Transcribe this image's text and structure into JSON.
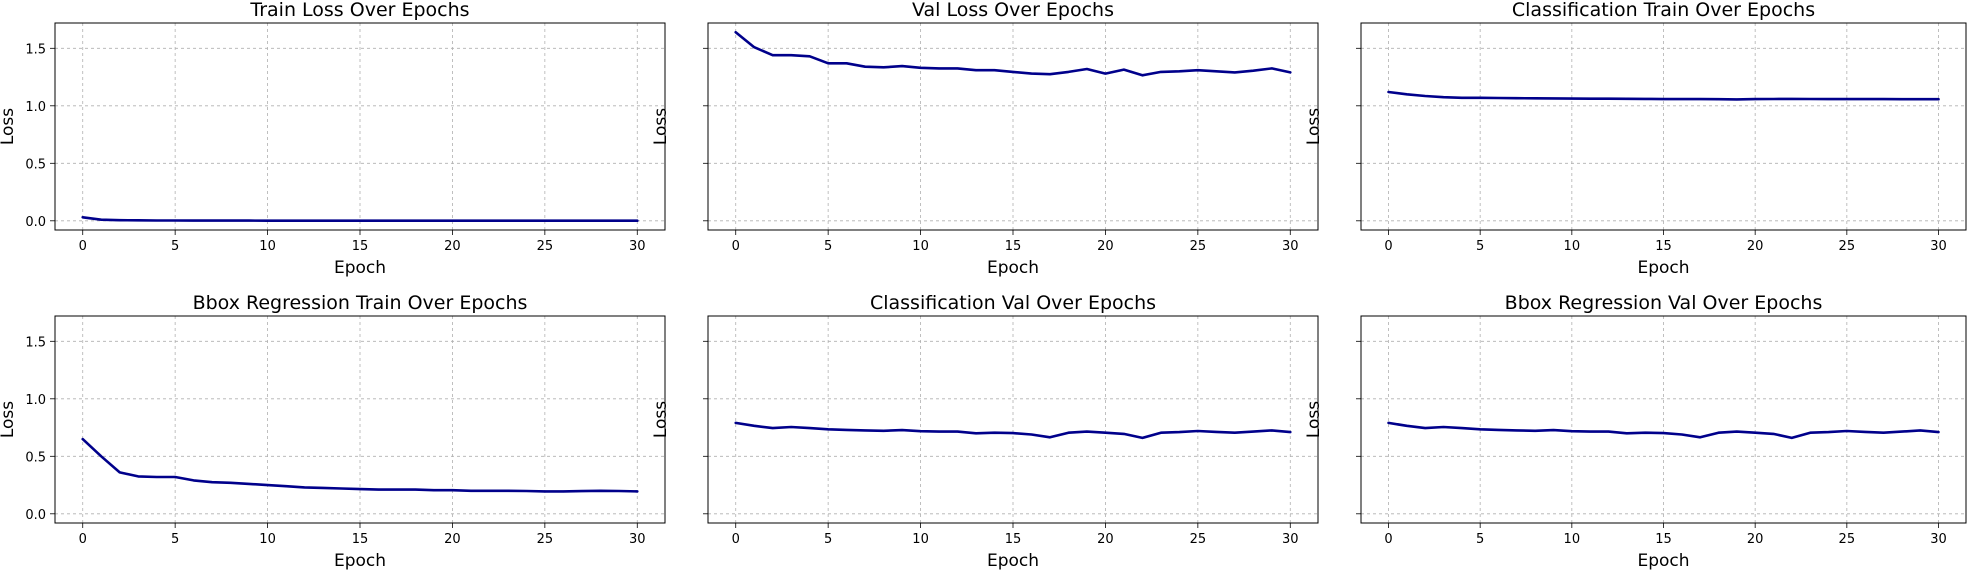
{
  "colors": {
    "line": "#00008b",
    "grid": "#b0b0b0"
  },
  "chart_data": [
    {
      "type": "line",
      "title": "Train Loss Over Epochs",
      "xlabel": "Epoch",
      "ylabel": "Loss",
      "xlim": [
        -1.5,
        31.5
      ],
      "ylim": [
        -0.08,
        1.72
      ],
      "xticks": [
        0,
        5,
        10,
        15,
        20,
        25,
        30
      ],
      "yticks": [
        "0.0",
        "0.5",
        "1.0",
        "1.5"
      ],
      "show_ytick_labels": true,
      "grid": true,
      "series": [
        {
          "x": [
            0,
            1,
            2,
            3,
            4,
            5,
            6,
            7,
            8,
            9,
            10,
            11,
            12,
            13,
            14,
            15,
            16,
            17,
            18,
            19,
            20,
            21,
            22,
            23,
            24,
            25,
            26,
            27,
            28,
            29,
            30
          ],
          "y": [
            0.03,
            0.01,
            0.005,
            0.004,
            0.003,
            0.003,
            0.002,
            0.002,
            0.002,
            0.002,
            0.001,
            0.001,
            0.001,
            0.001,
            0.001,
            0.001,
            0.001,
            0.001,
            0.001,
            0.001,
            0.001,
            0.001,
            0.001,
            0.001,
            0.001,
            0.001,
            0.001,
            0.001,
            0.001,
            0.001,
            0.001
          ]
        }
      ]
    },
    {
      "type": "line",
      "title": "Val Loss Over Epochs",
      "xlabel": "Epoch",
      "ylabel": "Loss",
      "xlim": [
        -1.5,
        31.5
      ],
      "ylim": [
        -0.08,
        1.72
      ],
      "xticks": [
        0,
        5,
        10,
        15,
        20,
        25,
        30
      ],
      "yticks": [
        "0.0",
        "0.5",
        "1.0",
        "1.5"
      ],
      "show_ytick_labels": false,
      "grid": true,
      "series": [
        {
          "x": [
            0,
            1,
            2,
            3,
            4,
            5,
            6,
            7,
            8,
            9,
            10,
            11,
            12,
            13,
            14,
            15,
            16,
            17,
            18,
            19,
            20,
            21,
            22,
            23,
            24,
            25,
            26,
            27,
            28,
            29,
            30
          ],
          "y": [
            1.64,
            1.51,
            1.44,
            1.44,
            1.43,
            1.37,
            1.37,
            1.34,
            1.335,
            1.345,
            1.33,
            1.325,
            1.325,
            1.31,
            1.31,
            1.295,
            1.28,
            1.275,
            1.295,
            1.32,
            1.28,
            1.315,
            1.265,
            1.295,
            1.3,
            1.31,
            1.3,
            1.29,
            1.305,
            1.325,
            1.29
          ]
        }
      ]
    },
    {
      "type": "line",
      "title": "Classification Train Over Epochs",
      "xlabel": "Epoch",
      "ylabel": "Loss",
      "xlim": [
        -1.5,
        31.5
      ],
      "ylim": [
        -0.08,
        1.72
      ],
      "xticks": [
        0,
        5,
        10,
        15,
        20,
        25,
        30
      ],
      "yticks": [
        "0.0",
        "0.5",
        "1.0",
        "1.5"
      ],
      "show_ytick_labels": false,
      "grid": true,
      "series": [
        {
          "x": [
            0,
            1,
            2,
            3,
            4,
            5,
            6,
            7,
            8,
            9,
            10,
            11,
            12,
            13,
            14,
            15,
            16,
            17,
            18,
            19,
            20,
            21,
            22,
            23,
            24,
            25,
            26,
            27,
            28,
            29,
            30
          ],
          "y": [
            1.12,
            1.1,
            1.085,
            1.075,
            1.07,
            1.07,
            1.068,
            1.066,
            1.065,
            1.064,
            1.063,
            1.062,
            1.062,
            1.061,
            1.06,
            1.058,
            1.058,
            1.058,
            1.057,
            1.056,
            1.058,
            1.059,
            1.06,
            1.059,
            1.058,
            1.058,
            1.058,
            1.058,
            1.057,
            1.057,
            1.057
          ]
        }
      ]
    },
    {
      "type": "line",
      "title": "Bbox Regression Train Over Epochs",
      "xlabel": "Epoch",
      "ylabel": "Loss",
      "xlim": [
        -1.5,
        31.5
      ],
      "ylim": [
        -0.08,
        1.72
      ],
      "xticks": [
        0,
        5,
        10,
        15,
        20,
        25,
        30
      ],
      "yticks": [
        "0.0",
        "0.5",
        "1.0",
        "1.5"
      ],
      "show_ytick_labels": true,
      "grid": true,
      "series": [
        {
          "x": [
            0,
            1,
            2,
            3,
            4,
            5,
            6,
            7,
            8,
            9,
            10,
            11,
            12,
            13,
            14,
            15,
            16,
            17,
            18,
            19,
            20,
            21,
            22,
            23,
            24,
            25,
            26,
            27,
            28,
            29,
            30
          ],
          "y": [
            0.65,
            0.5,
            0.36,
            0.325,
            0.32,
            0.32,
            0.29,
            0.275,
            0.27,
            0.26,
            0.25,
            0.24,
            0.23,
            0.225,
            0.22,
            0.215,
            0.21,
            0.21,
            0.21,
            0.205,
            0.205,
            0.2,
            0.2,
            0.2,
            0.198,
            0.195,
            0.195,
            0.197,
            0.2,
            0.198,
            0.195
          ]
        }
      ]
    },
    {
      "type": "line",
      "title": "Classification Val Over Epochs",
      "xlabel": "Epoch",
      "ylabel": "Loss",
      "xlim": [
        -1.5,
        31.5
      ],
      "ylim": [
        -0.08,
        1.72
      ],
      "xticks": [
        0,
        5,
        10,
        15,
        20,
        25,
        30
      ],
      "yticks": [
        "0.0",
        "0.5",
        "1.0",
        "1.5"
      ],
      "show_ytick_labels": false,
      "grid": true,
      "series": [
        {
          "x": [
            0,
            1,
            2,
            3,
            4,
            5,
            6,
            7,
            8,
            9,
            10,
            11,
            12,
            13,
            14,
            15,
            16,
            17,
            18,
            19,
            20,
            21,
            22,
            23,
            24,
            25,
            26,
            27,
            28,
            29,
            30
          ],
          "y": [
            0.79,
            0.765,
            0.745,
            0.755,
            0.745,
            0.735,
            0.73,
            0.725,
            0.722,
            0.728,
            0.718,
            0.715,
            0.715,
            0.7,
            0.705,
            0.702,
            0.69,
            0.665,
            0.705,
            0.715,
            0.705,
            0.695,
            0.66,
            0.705,
            0.71,
            0.72,
            0.712,
            0.705,
            0.715,
            0.725,
            0.71
          ]
        }
      ]
    },
    {
      "type": "line",
      "title": "Bbox Regression Val Over Epochs",
      "xlabel": "Epoch",
      "ylabel": "Loss",
      "xlim": [
        -1.5,
        31.5
      ],
      "ylim": [
        -0.08,
        1.72
      ],
      "xticks": [
        0,
        5,
        10,
        15,
        20,
        25,
        30
      ],
      "yticks": [
        "0.0",
        "0.5",
        "1.0",
        "1.5"
      ],
      "show_ytick_labels": false,
      "grid": true,
      "series": [
        {
          "x": [
            0,
            1,
            2,
            3,
            4,
            5,
            6,
            7,
            8,
            9,
            10,
            11,
            12,
            13,
            14,
            15,
            16,
            17,
            18,
            19,
            20,
            21,
            22,
            23,
            24,
            25,
            26,
            27,
            28,
            29,
            30
          ],
          "y": [
            0.79,
            0.765,
            0.745,
            0.755,
            0.745,
            0.735,
            0.73,
            0.725,
            0.722,
            0.728,
            0.718,
            0.715,
            0.715,
            0.7,
            0.705,
            0.702,
            0.69,
            0.665,
            0.705,
            0.715,
            0.705,
            0.695,
            0.66,
            0.705,
            0.71,
            0.72,
            0.712,
            0.705,
            0.715,
            0.725,
            0.71
          ]
        }
      ]
    }
  ]
}
